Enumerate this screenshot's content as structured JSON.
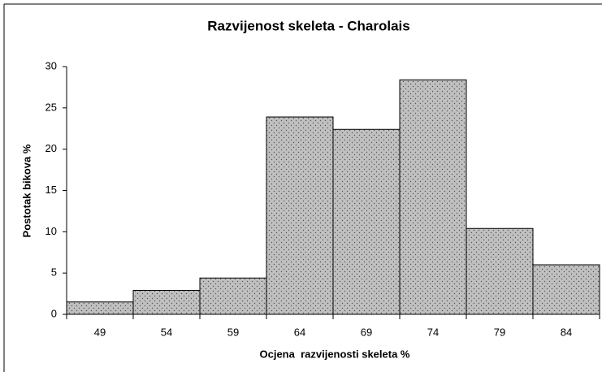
{
  "chart_data": {
    "type": "bar",
    "title": "Razvijenost skeleta - Charolais",
    "x_label": "Ocjena  razvijenosti skeleta %",
    "y_label": "Postotak bikova %",
    "categories": [
      "49",
      "54",
      "59",
      "64",
      "69",
      "74",
      "79",
      "84"
    ],
    "values": [
      1.5,
      2.9,
      4.4,
      23.9,
      22.4,
      28.4,
      10.4,
      6.0
    ],
    "color": "#c0c0c0",
    "ylim": [
      0,
      30
    ],
    "yticks": [
      0,
      5,
      10,
      15,
      20,
      25,
      30
    ],
    "grid": false
  }
}
